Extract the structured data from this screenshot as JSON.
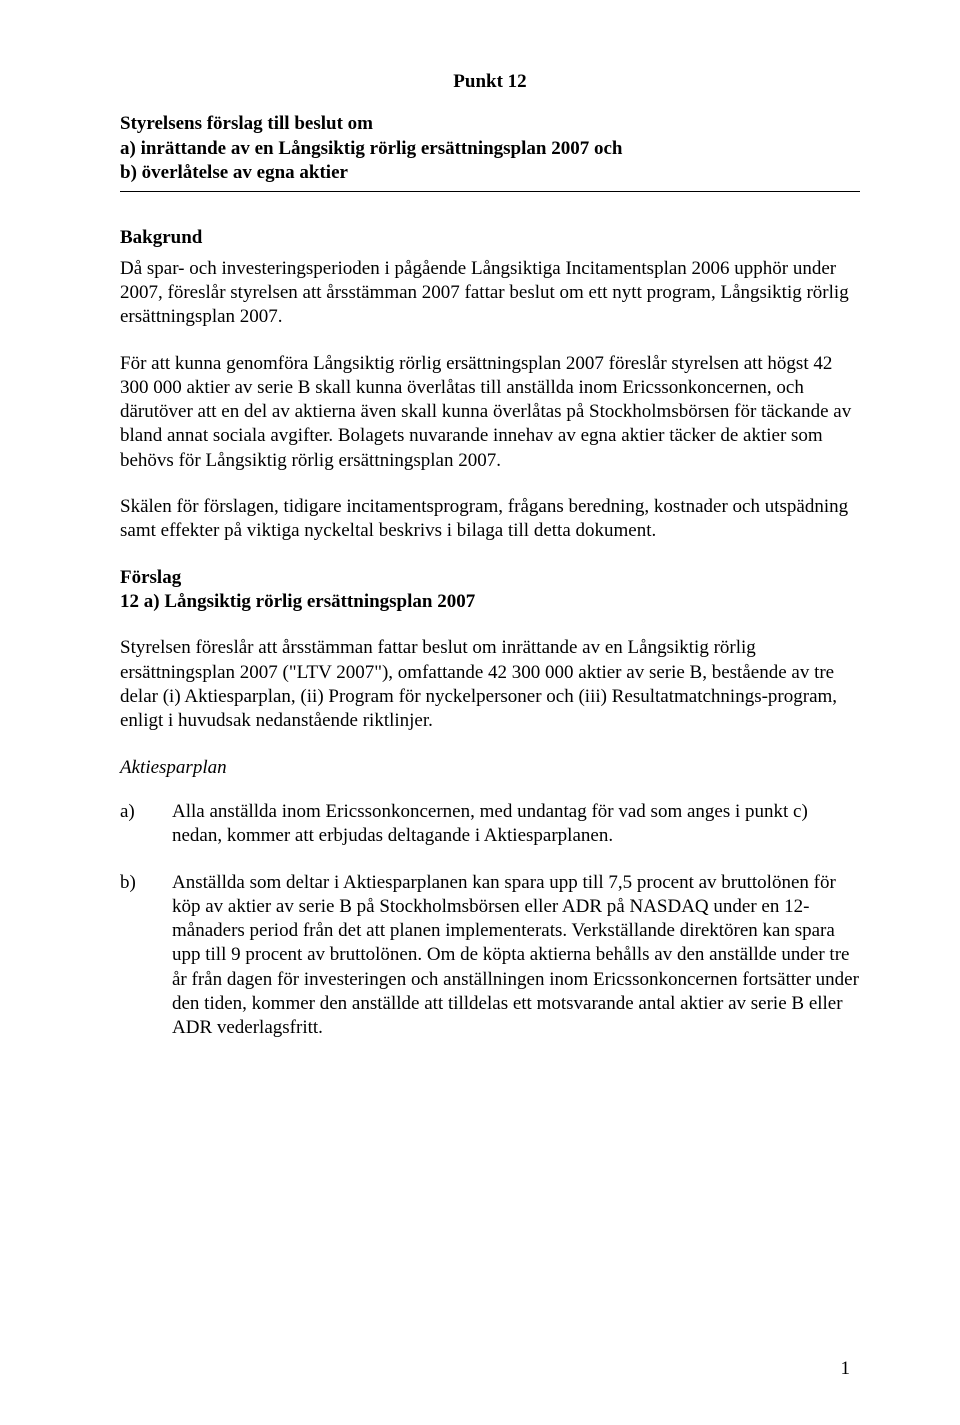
{
  "punkt": "Punkt 12",
  "title": {
    "line1": "Styrelsens förslag till beslut om",
    "line2": "a) inrättande av en Långsiktig rörlig ersättningsplan 2007 och",
    "line3": "b) överlåtelse av egna aktier"
  },
  "heading_bakgrund": "Bakgrund",
  "para1": "Då spar- och investeringsperioden i pågående Långsiktiga Incitamentsplan 2006 upphör under 2007, föreslår styrelsen att årsstämman 2007 fattar beslut om ett nytt program, Långsiktig rörlig ersättningsplan 2007.",
  "para2": "För att kunna genomföra Långsiktig rörlig ersättningsplan 2007 föreslår styrelsen att högst 42 300 000 aktier av serie B skall kunna överlåtas till anställda inom Ericssonkoncernen, och därutöver att en del av aktierna även skall kunna överlåtas på Stockholmsbörsen för täckande av bland annat sociala avgifter. Bolagets nuvarande innehav av egna aktier täcker de aktier som behövs för Långsiktig rörlig ersättningsplan 2007.",
  "para3": "Skälen för förslagen, tidigare incitamentsprogram, frågans beredning, kostnader och utspädning samt effekter på viktiga nyckeltal beskrivs i bilaga till detta dokument.",
  "heading_forslag": "Förslag",
  "heading_12a": "12 a)   Långsiktig rörlig ersättningsplan 2007",
  "para4": "Styrelsen föreslår att årsstämman fattar beslut om inrättande av en Långsiktig rörlig ersättningsplan 2007 (\"LTV 2007\"), omfattande 42 300 000 aktier av serie B, bestående av tre delar (i) Aktiesparplan, (ii) Program för nyckelpersoner och (iii) Resultatmatchnings-program, enligt i huvudsak nedanstående riktlinjer.",
  "heading_aktiesparplan": "Aktiesparplan",
  "list_a": {
    "label": "a)",
    "text": "Alla anställda inom Ericssonkoncernen, med undantag för vad som anges i punkt c) nedan, kommer att erbjudas deltagande i Aktiesparplanen."
  },
  "list_b": {
    "label": "b)",
    "text": "Anställda som deltar i Aktiesparplanen kan spara upp till 7,5 procent av bruttolönen för köp av aktier av serie B på Stockholmsbörsen eller ADR på NASDAQ under en 12-månaders period från det att planen implementerats. Verkställande direktören kan spara upp till 9 procent av bruttolönen. Om de köpta aktierna behålls av den anställde under tre år från dagen för investeringen och anställningen inom Ericssonkoncernen fortsätter under den tiden, kommer den anställde att tilldelas ett motsvarande antal aktier av serie B eller ADR vederlagsfritt."
  },
  "page_number": "1"
}
